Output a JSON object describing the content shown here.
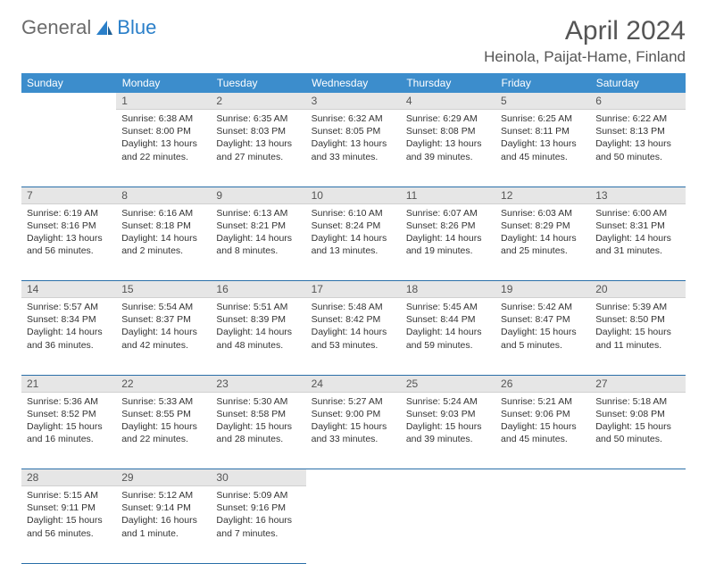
{
  "brand": {
    "part1": "General",
    "part2": "Blue"
  },
  "title": "April 2024",
  "location": "Heinola, Paijat-Hame, Finland",
  "weekdays": [
    "Sunday",
    "Monday",
    "Tuesday",
    "Wednesday",
    "Thursday",
    "Friday",
    "Saturday"
  ],
  "colors": {
    "header_bg": "#3c8dcc",
    "header_text": "#ffffff",
    "daynum_bg": "#e6e6e6",
    "row_border": "#2a6fa8",
    "text": "#333333",
    "title_text": "#555555"
  },
  "days": {
    "1": {
      "sunrise": "Sunrise: 6:38 AM",
      "sunset": "Sunset: 8:00 PM",
      "daylight": "Daylight: 13 hours and 22 minutes."
    },
    "2": {
      "sunrise": "Sunrise: 6:35 AM",
      "sunset": "Sunset: 8:03 PM",
      "daylight": "Daylight: 13 hours and 27 minutes."
    },
    "3": {
      "sunrise": "Sunrise: 6:32 AM",
      "sunset": "Sunset: 8:05 PM",
      "daylight": "Daylight: 13 hours and 33 minutes."
    },
    "4": {
      "sunrise": "Sunrise: 6:29 AM",
      "sunset": "Sunset: 8:08 PM",
      "daylight": "Daylight: 13 hours and 39 minutes."
    },
    "5": {
      "sunrise": "Sunrise: 6:25 AM",
      "sunset": "Sunset: 8:11 PM",
      "daylight": "Daylight: 13 hours and 45 minutes."
    },
    "6": {
      "sunrise": "Sunrise: 6:22 AM",
      "sunset": "Sunset: 8:13 PM",
      "daylight": "Daylight: 13 hours and 50 minutes."
    },
    "7": {
      "sunrise": "Sunrise: 6:19 AM",
      "sunset": "Sunset: 8:16 PM",
      "daylight": "Daylight: 13 hours and 56 minutes."
    },
    "8": {
      "sunrise": "Sunrise: 6:16 AM",
      "sunset": "Sunset: 8:18 PM",
      "daylight": "Daylight: 14 hours and 2 minutes."
    },
    "9": {
      "sunrise": "Sunrise: 6:13 AM",
      "sunset": "Sunset: 8:21 PM",
      "daylight": "Daylight: 14 hours and 8 minutes."
    },
    "10": {
      "sunrise": "Sunrise: 6:10 AM",
      "sunset": "Sunset: 8:24 PM",
      "daylight": "Daylight: 14 hours and 13 minutes."
    },
    "11": {
      "sunrise": "Sunrise: 6:07 AM",
      "sunset": "Sunset: 8:26 PM",
      "daylight": "Daylight: 14 hours and 19 minutes."
    },
    "12": {
      "sunrise": "Sunrise: 6:03 AM",
      "sunset": "Sunset: 8:29 PM",
      "daylight": "Daylight: 14 hours and 25 minutes."
    },
    "13": {
      "sunrise": "Sunrise: 6:00 AM",
      "sunset": "Sunset: 8:31 PM",
      "daylight": "Daylight: 14 hours and 31 minutes."
    },
    "14": {
      "sunrise": "Sunrise: 5:57 AM",
      "sunset": "Sunset: 8:34 PM",
      "daylight": "Daylight: 14 hours and 36 minutes."
    },
    "15": {
      "sunrise": "Sunrise: 5:54 AM",
      "sunset": "Sunset: 8:37 PM",
      "daylight": "Daylight: 14 hours and 42 minutes."
    },
    "16": {
      "sunrise": "Sunrise: 5:51 AM",
      "sunset": "Sunset: 8:39 PM",
      "daylight": "Daylight: 14 hours and 48 minutes."
    },
    "17": {
      "sunrise": "Sunrise: 5:48 AM",
      "sunset": "Sunset: 8:42 PM",
      "daylight": "Daylight: 14 hours and 53 minutes."
    },
    "18": {
      "sunrise": "Sunrise: 5:45 AM",
      "sunset": "Sunset: 8:44 PM",
      "daylight": "Daylight: 14 hours and 59 minutes."
    },
    "19": {
      "sunrise": "Sunrise: 5:42 AM",
      "sunset": "Sunset: 8:47 PM",
      "daylight": "Daylight: 15 hours and 5 minutes."
    },
    "20": {
      "sunrise": "Sunrise: 5:39 AM",
      "sunset": "Sunset: 8:50 PM",
      "daylight": "Daylight: 15 hours and 11 minutes."
    },
    "21": {
      "sunrise": "Sunrise: 5:36 AM",
      "sunset": "Sunset: 8:52 PM",
      "daylight": "Daylight: 15 hours and 16 minutes."
    },
    "22": {
      "sunrise": "Sunrise: 5:33 AM",
      "sunset": "Sunset: 8:55 PM",
      "daylight": "Daylight: 15 hours and 22 minutes."
    },
    "23": {
      "sunrise": "Sunrise: 5:30 AM",
      "sunset": "Sunset: 8:58 PM",
      "daylight": "Daylight: 15 hours and 28 minutes."
    },
    "24": {
      "sunrise": "Sunrise: 5:27 AM",
      "sunset": "Sunset: 9:00 PM",
      "daylight": "Daylight: 15 hours and 33 minutes."
    },
    "25": {
      "sunrise": "Sunrise: 5:24 AM",
      "sunset": "Sunset: 9:03 PM",
      "daylight": "Daylight: 15 hours and 39 minutes."
    },
    "26": {
      "sunrise": "Sunrise: 5:21 AM",
      "sunset": "Sunset: 9:06 PM",
      "daylight": "Daylight: 15 hours and 45 minutes."
    },
    "27": {
      "sunrise": "Sunrise: 5:18 AM",
      "sunset": "Sunset: 9:08 PM",
      "daylight": "Daylight: 15 hours and 50 minutes."
    },
    "28": {
      "sunrise": "Sunrise: 5:15 AM",
      "sunset": "Sunset: 9:11 PM",
      "daylight": "Daylight: 15 hours and 56 minutes."
    },
    "29": {
      "sunrise": "Sunrise: 5:12 AM",
      "sunset": "Sunset: 9:14 PM",
      "daylight": "Daylight: 16 hours and 1 minute."
    },
    "30": {
      "sunrise": "Sunrise: 5:09 AM",
      "sunset": "Sunset: 9:16 PM",
      "daylight": "Daylight: 16 hours and 7 minutes."
    }
  },
  "grid": [
    [
      null,
      "1",
      "2",
      "3",
      "4",
      "5",
      "6"
    ],
    [
      "7",
      "8",
      "9",
      "10",
      "11",
      "12",
      "13"
    ],
    [
      "14",
      "15",
      "16",
      "17",
      "18",
      "19",
      "20"
    ],
    [
      "21",
      "22",
      "23",
      "24",
      "25",
      "26",
      "27"
    ],
    [
      "28",
      "29",
      "30",
      null,
      null,
      null,
      null
    ]
  ]
}
